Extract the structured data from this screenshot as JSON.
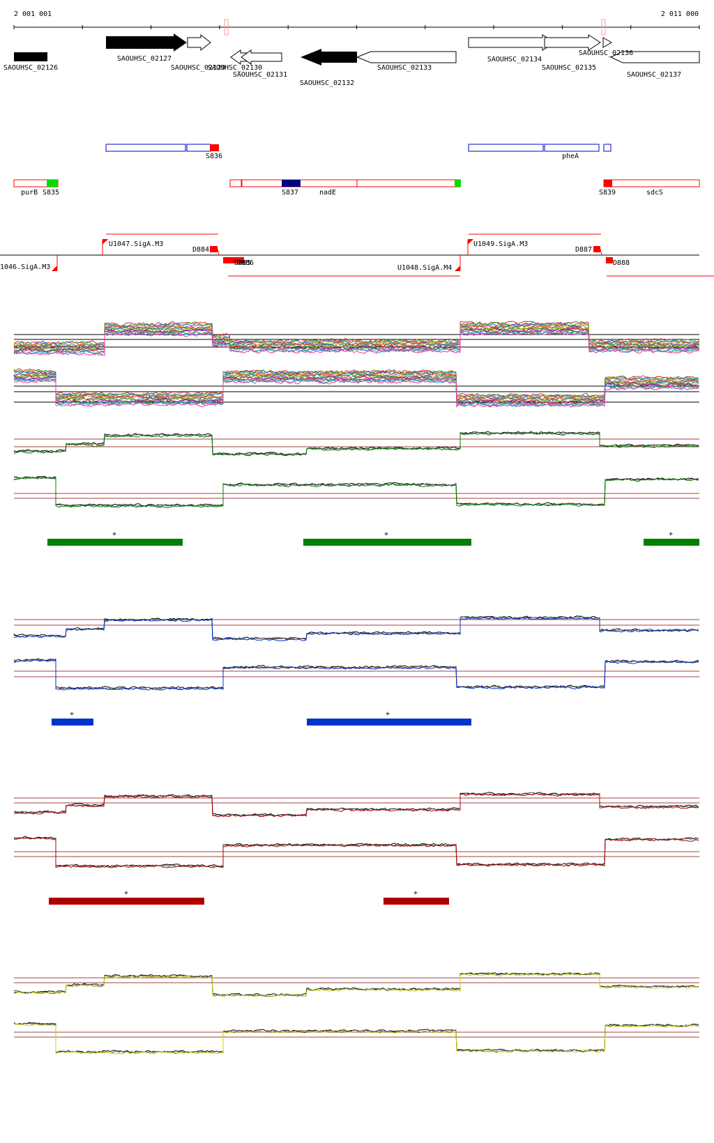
{
  "genome_view": {
    "coord_start": "2 001 001",
    "coord_end": "2 011 000"
  },
  "genes": [
    {
      "label": "SAOUHSC_02126"
    },
    {
      "label": "SAOUHSC_02127"
    },
    {
      "label": "SAOUHSC_02129"
    },
    {
      "label": "SAOUHSC_02130"
    },
    {
      "label": "SAOUHSC_02131"
    },
    {
      "label": "SAOUHSC_02132"
    },
    {
      "label": "SAOUHSC_02133"
    },
    {
      "label": "SAOUHSC_02134"
    },
    {
      "label": "SAOUHSC_02135"
    },
    {
      "label": "SAOUHSC_02136"
    },
    {
      "label": "SAOUHSC_02137"
    }
  ],
  "plus_features": [
    {
      "label": "S836"
    },
    {
      "label": "pheA"
    }
  ],
  "minus_features": [
    {
      "label": "purB"
    },
    {
      "label": "S835"
    },
    {
      "label": "S837"
    },
    {
      "label": "nadE"
    },
    {
      "label": "S839"
    },
    {
      "label": "sdcS"
    }
  ],
  "regulation": [
    {
      "label": "1046.SigA.M3"
    },
    {
      "label": "U1047.SigA.M3"
    },
    {
      "label": "D884"
    },
    {
      "label": "D885"
    },
    {
      "label": "D886"
    },
    {
      "label": "U1048.SigA.M4"
    },
    {
      "label": "U1049.SigA.M3"
    },
    {
      "label": "D887"
    },
    {
      "label": "D888"
    }
  ],
  "tracks": [
    {
      "name": "green",
      "color": "#008000",
      "segment_mark": "+"
    },
    {
      "name": "blue",
      "color": "#0033cc",
      "segment_mark": "+"
    },
    {
      "name": "red",
      "color": "#b00000",
      "segment_mark": "+"
    },
    {
      "name": "yellow",
      "color": "#cccc00"
    }
  ],
  "colors": {
    "cds_fill_dark": "#000000",
    "feature_blue": "#0000cc",
    "feature_red": "#ff0000",
    "feature_green": "#00dd00",
    "feature_navy": "#000080",
    "threshold": "#a04040"
  }
}
